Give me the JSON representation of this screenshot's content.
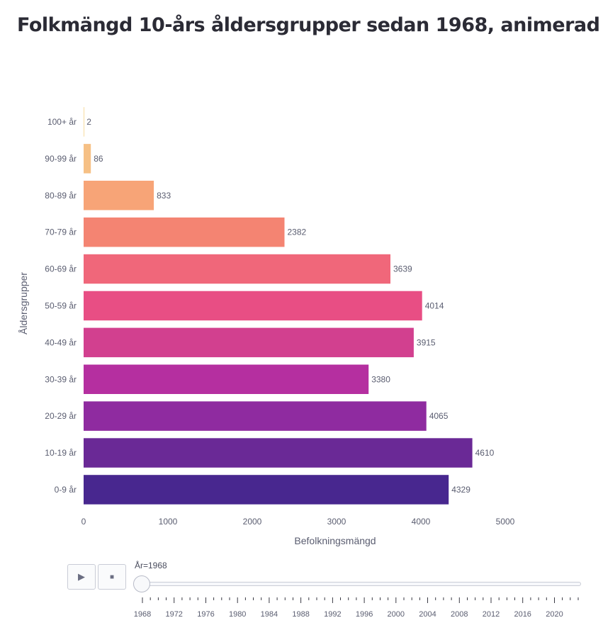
{
  "title": "Folkmängd 10-års åldersgrupper sedan 1968, animerad",
  "controls": {
    "play_icon": "▶",
    "stop_icon": "■",
    "slider_label": "År=1968",
    "slider_value": 1968,
    "slider_range": [
      1968,
      2023
    ]
  },
  "chart_data": {
    "type": "bar",
    "orientation": "horizontal",
    "xlabel": "Befolkningsmängd",
    "ylabel": "Åldersgrupper",
    "xlim": [
      0,
      5800
    ],
    "xticks": [
      0,
      1000,
      2000,
      3000,
      4000,
      5000
    ],
    "grid": false,
    "categories": [
      "0-9 år",
      "10-19 år",
      "20-29 år",
      "30-39 år",
      "40-49 år",
      "50-59 år",
      "60-69 år",
      "70-79 år",
      "80-89 år",
      "90-99 år",
      "100+ år"
    ],
    "values": [
      4329,
      4610,
      4065,
      3380,
      3915,
      4014,
      3639,
      2382,
      833,
      86,
      2
    ],
    "colors": [
      "#48278f",
      "#6a2996",
      "#8f2ba0",
      "#b52fa0",
      "#d2408f",
      "#e84e84",
      "#f0677a",
      "#f48472",
      "#f7a477",
      "#f6c085",
      "#f7dca0"
    ],
    "year_ticks": [
      "1968",
      "1972",
      "1976",
      "1980",
      "1984",
      "1988",
      "1992",
      "1996",
      "2000",
      "2004",
      "2008",
      "2012",
      "2016",
      "2020"
    ]
  }
}
